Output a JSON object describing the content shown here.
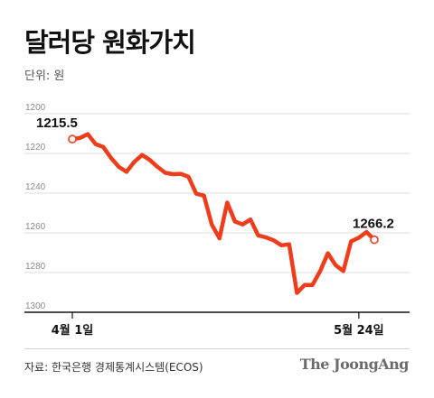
{
  "header": {
    "title": "달러당 원화가치",
    "unit": "단위: 원"
  },
  "footer": {
    "source": "자료: 한국은행 경제통계시스템(ECOS)",
    "logo": "The JoongAng"
  },
  "colors": {
    "line": "#ee3d1c",
    "grid": "#dcdcdc",
    "axis": "#111111"
  },
  "chart_data": {
    "type": "line",
    "title": "달러당 원화가치",
    "unit": "단위: 원",
    "xlabel": "",
    "ylabel": "",
    "y_axis_inverted": true,
    "ylim": [
      1200,
      1300
    ],
    "yticks": [
      "1200",
      "1220",
      "1240",
      "1260",
      "1280",
      "1300"
    ],
    "x_tick_labels": [
      {
        "label": "4월 1일",
        "index": 0
      },
      {
        "label": "5월 24일",
        "index": 37
      }
    ],
    "grid": true,
    "series": [
      {
        "values": [
          1215.5,
          1214.9,
          1213,
          1218,
          1219.5,
          1225,
          1229.5,
          1232,
          1227,
          1223.5,
          1226,
          1229.5,
          1232.5,
          1233.2,
          1233,
          1234.5,
          1243,
          1244,
          1258.5,
          1265.5,
          1247.5,
          1257,
          1258.5,
          1256,
          1264,
          1265,
          1266.5,
          1269,
          1268.5,
          1293,
          1289,
          1289,
          1282,
          1273,
          1279,
          1282,
          1267,
          1265.2,
          1262.3,
          1266.2
        ]
      }
    ],
    "annotations": [
      {
        "text": "1215.5",
        "index": 0
      },
      {
        "text": "1266.2",
        "index": 39
      }
    ]
  }
}
